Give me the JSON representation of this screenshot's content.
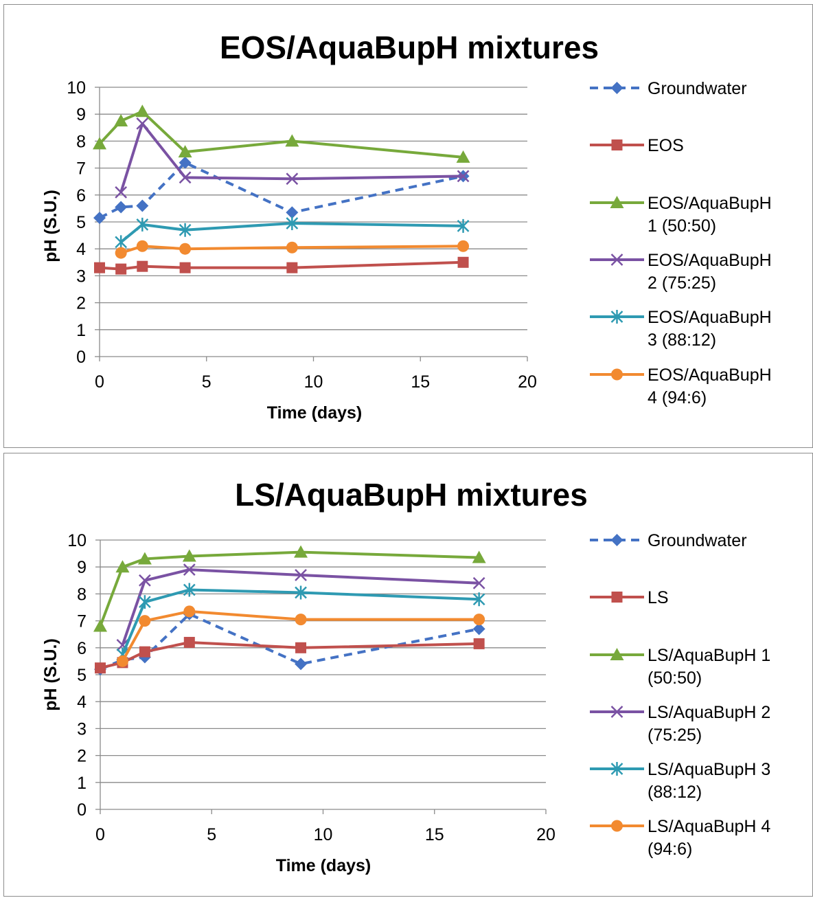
{
  "chart_data": [
    {
      "type": "line",
      "title": "EOS/AquaBupH mixtures",
      "xlabel": "Time (days)",
      "ylabel": "pH (S.U.)",
      "xlim": [
        0,
        20
      ],
      "ylim": [
        0,
        10
      ],
      "xticks": [
        "0",
        "5",
        "10",
        "15",
        "20"
      ],
      "yticks": [
        "0",
        "1",
        "2",
        "3",
        "4",
        "5",
        "6",
        "7",
        "8",
        "9",
        "10"
      ],
      "grid": "horizontal",
      "legend": "right",
      "series": [
        {
          "name": "Groundwater",
          "legend": [
            "Groundwater"
          ],
          "color": "#4472c4",
          "marker": "diamond",
          "dashed": true,
          "points": [
            [
              0,
              5.15
            ],
            [
              1,
              5.55
            ],
            [
              2,
              5.6
            ],
            [
              4,
              7.2
            ],
            [
              9,
              5.35
            ],
            [
              17,
              6.7
            ]
          ]
        },
        {
          "name": "EOS",
          "legend": [
            "EOS"
          ],
          "color": "#c0504d",
          "marker": "square",
          "dashed": false,
          "points": [
            [
              0,
              3.3
            ],
            [
              1,
              3.25
            ],
            [
              2,
              3.35
            ],
            [
              4,
              3.3
            ],
            [
              9,
              3.3
            ],
            [
              17,
              3.5
            ]
          ]
        },
        {
          "name": "EOS/AquaBupH 1 (50:50)",
          "legend": [
            "EOS/AquaBupH",
            "1 (50:50)"
          ],
          "color": "#77a93b",
          "marker": "triangle",
          "dashed": false,
          "points": [
            [
              0,
              7.9
            ],
            [
              1,
              8.75
            ],
            [
              2,
              9.1
            ],
            [
              4,
              7.6
            ],
            [
              9,
              8.0
            ],
            [
              17,
              7.4
            ]
          ]
        },
        {
          "name": "EOS/AquaBupH 2 (75:25)",
          "legend": [
            "EOS/AquaBupH",
            "2 (75:25)"
          ],
          "color": "#7a52a3",
          "marker": "x",
          "dashed": false,
          "points": [
            [
              1,
              6.1
            ],
            [
              2,
              8.65
            ],
            [
              4,
              6.65
            ],
            [
              9,
              6.6
            ],
            [
              17,
              6.7
            ]
          ]
        },
        {
          "name": "EOS/AquaBupH 3 (88:12)",
          "legend": [
            "EOS/AquaBupH",
            "3 (88:12)"
          ],
          "color": "#2e9ab2",
          "marker": "star",
          "dashed": false,
          "points": [
            [
              1,
              4.25
            ],
            [
              2,
              4.9
            ],
            [
              4,
              4.7
            ],
            [
              9,
              4.95
            ],
            [
              17,
              4.85
            ]
          ]
        },
        {
          "name": "EOS/AquaBupH 4 (94:6)",
          "legend": [
            "EOS/AquaBupH",
            "4 (94:6)"
          ],
          "color": "#f28a30",
          "marker": "circle",
          "dashed": false,
          "points": [
            [
              1,
              3.85
            ],
            [
              2,
              4.1
            ],
            [
              4,
              4.0
            ],
            [
              9,
              4.05
            ],
            [
              17,
              4.1
            ]
          ]
        }
      ]
    },
    {
      "type": "line",
      "title": "LS/AquaBupH mixtures",
      "xlabel": "Time (days)",
      "ylabel": "pH (S.U.)",
      "xlim": [
        0,
        20
      ],
      "ylim": [
        0,
        10
      ],
      "xticks": [
        "0",
        "5",
        "10",
        "15",
        "20"
      ],
      "yticks": [
        "0",
        "1",
        "2",
        "3",
        "4",
        "5",
        "6",
        "7",
        "8",
        "9",
        "10"
      ],
      "grid": "horizontal",
      "legend": "right",
      "series": [
        {
          "name": "Groundwater",
          "legend": [
            "Groundwater"
          ],
          "color": "#4472c4",
          "marker": "diamond",
          "dashed": true,
          "points": [
            [
              0,
              5.2
            ],
            [
              1,
              5.55
            ],
            [
              2,
              5.65
            ],
            [
              4,
              7.25
            ],
            [
              9,
              5.4
            ],
            [
              17,
              6.7
            ]
          ]
        },
        {
          "name": "LS",
          "legend": [
            "LS"
          ],
          "color": "#c0504d",
          "marker": "square",
          "dashed": false,
          "points": [
            [
              0,
              5.25
            ],
            [
              1,
              5.45
            ],
            [
              2,
              5.85
            ],
            [
              4,
              6.2
            ],
            [
              9,
              6.0
            ],
            [
              17,
              6.15
            ]
          ]
        },
        {
          "name": "LS/AquaBupH 1 (50:50)",
          "legend": [
            "LS/AquaBupH 1",
            "(50:50)"
          ],
          "color": "#77a93b",
          "marker": "triangle",
          "dashed": false,
          "points": [
            [
              0,
              6.8
            ],
            [
              1,
              9.0
            ],
            [
              2,
              9.3
            ],
            [
              4,
              9.4
            ],
            [
              9,
              9.55
            ],
            [
              17,
              9.35
            ]
          ]
        },
        {
          "name": "LS/AquaBupH 2 (75:25)",
          "legend": [
            "LS/AquaBupH 2",
            "(75:25)"
          ],
          "color": "#7a52a3",
          "marker": "x",
          "dashed": false,
          "points": [
            [
              1,
              6.1
            ],
            [
              2,
              8.5
            ],
            [
              4,
              8.9
            ],
            [
              9,
              8.7
            ],
            [
              17,
              8.4
            ]
          ]
        },
        {
          "name": "LS/AquaBupH 3 (88:12)",
          "legend": [
            "LS/AquaBupH 3",
            "(88:12)"
          ],
          "color": "#2e9ab2",
          "marker": "star",
          "dashed": false,
          "points": [
            [
              1,
              5.75
            ],
            [
              2,
              7.7
            ],
            [
              4,
              8.15
            ],
            [
              9,
              8.05
            ],
            [
              17,
              7.8
            ]
          ]
        },
        {
          "name": "LS/AquaBupH 4 (94:6)",
          "legend": [
            "LS/AquaBupH 4",
            "(94:6)"
          ],
          "color": "#f28a30",
          "marker": "circle",
          "dashed": false,
          "points": [
            [
              1,
              5.5
            ],
            [
              2,
              7.0
            ],
            [
              4,
              7.35
            ],
            [
              9,
              7.05
            ],
            [
              17,
              7.05
            ]
          ]
        }
      ]
    }
  ]
}
